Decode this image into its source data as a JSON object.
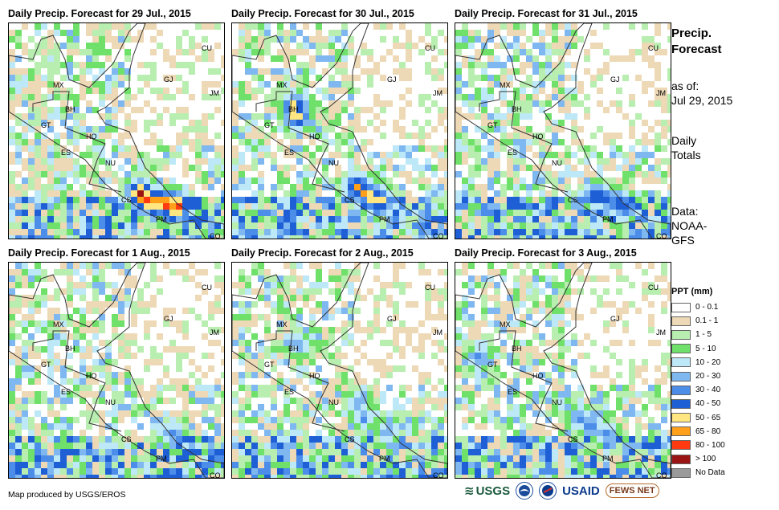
{
  "panels": [
    {
      "title": "Daily Precip. Forecast for 29 Jul., 2015",
      "seed": 11,
      "storm": [
        [
          165,
          215
        ],
        [
          195,
          222
        ],
        [
          160,
          208
        ],
        [
          205,
          225
        ],
        [
          180,
          218
        ]
      ],
      "strong": 1.0
    },
    {
      "title": "Daily Precip. Forecast for 30 Jul., 2015",
      "seed": 23,
      "storm": [
        [
          152,
          200
        ],
        [
          162,
          207
        ],
        [
          170,
          213
        ],
        [
          180,
          218
        ],
        [
          75,
          100
        ],
        [
          77,
          112
        ]
      ],
      "strong": 0.85
    },
    {
      "title": "Daily Precip. Forecast for 31 Jul., 2015",
      "seed": 37,
      "storm": [
        [
          172,
          210
        ],
        [
          185,
          215
        ],
        [
          198,
          220
        ],
        [
          208,
          225
        ]
      ],
      "strong": 0.7
    },
    {
      "title": "Daily Precip. Forecast for 1 Aug., 2015",
      "seed": 41,
      "storm": [
        [
          200,
          210
        ],
        [
          205,
          218
        ]
      ],
      "strong": 0.6
    },
    {
      "title": "Daily Precip. Forecast for 2 Aug., 2015",
      "seed": 53,
      "storm": [
        [
          155,
          170
        ],
        [
          160,
          190
        ],
        [
          190,
          205
        ],
        [
          78,
          98
        ]
      ],
      "strong": 0.55
    },
    {
      "title": "Daily Precip. Forecast for 3 Aug., 2015",
      "seed": 67,
      "storm": [
        [
          150,
          190
        ],
        [
          165,
          200
        ],
        [
          185,
          210
        ],
        [
          25,
          115
        ]
      ],
      "strong": 0.6
    }
  ],
  "map_labels": {
    "MX": "MX",
    "GT": "GT",
    "BH": "BH",
    "HO": "HO",
    "ES": "ES",
    "NU": "NU",
    "CS": "CS",
    "PM": "PM",
    "CO": "CO",
    "CU": "CU",
    "GJ": "GJ",
    "JM": "JM"
  },
  "side": {
    "title": "Precip. Forecast",
    "as_of_label": "as of:",
    "as_of_date": "Jul 29, 2015",
    "daily_totals": "Daily Totals",
    "data_label": "Data:",
    "data_source": "NOAA- GFS"
  },
  "legend": {
    "title": "PPT (mm)",
    "items": [
      {
        "label": "0 - 0.1",
        "color": "#ffffff"
      },
      {
        "label": "0.1 - 1",
        "color": "#eed9b7"
      },
      {
        "label": "1 - 5",
        "color": "#b8eeb0"
      },
      {
        "label": "5 - 10",
        "color": "#6fe06a"
      },
      {
        "label": "10 - 20",
        "color": "#bde8f7"
      },
      {
        "label": "20 - 30",
        "color": "#7fb8f0"
      },
      {
        "label": "30 - 40",
        "color": "#4b8de8"
      },
      {
        "label": "40 - 50",
        "color": "#1f5fd6"
      },
      {
        "label": "50 - 65",
        "color": "#ffe680"
      },
      {
        "label": "65 - 80",
        "color": "#ff9f1a"
      },
      {
        "label": "80 - 100",
        "color": "#ff3a10"
      },
      {
        "label": "> 100",
        "color": "#9b1414"
      },
      {
        "label": "No Data",
        "color": "#9a9a9a"
      }
    ]
  },
  "credit": "Map produced by USGS/EROS",
  "logos": {
    "usgs": "USGS",
    "usaid": "USAID",
    "fews": "FEWS NET"
  }
}
